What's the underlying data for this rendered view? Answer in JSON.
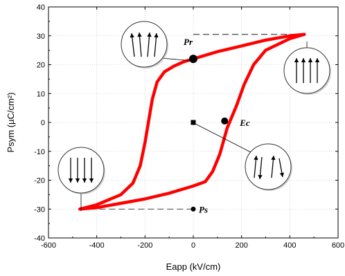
{
  "chart_data": {
    "type": "line",
    "title": "",
    "xlabel": "Eapp (kV/cm)",
    "ylabel": "Psym (µC/cm²)",
    "xlim": [
      -600,
      600
    ],
    "ylim": [
      -40,
      40
    ],
    "xticks": [
      "-600",
      "-400",
      "-200",
      "0",
      "200",
      "400",
      "600"
    ],
    "yticks": [
      "40",
      "30",
      "20",
      "10",
      "0",
      "-10",
      "-20",
      "-30",
      "-40"
    ],
    "grid": true,
    "series": [
      {
        "color": "#ff0000",
        "x": [
          -470,
          -400,
          -300,
          -250,
          -220,
          -200,
          -190,
          -180,
          -170,
          -150,
          -120,
          -80,
          -40,
          0,
          100,
          200,
          300,
          400,
          460
        ],
        "y": [
          -30,
          -28.5,
          -25,
          -21,
          -15,
          -7,
          -2,
          3,
          8,
          14,
          17.5,
          19.5,
          21,
          22,
          24.5,
          26.5,
          28.5,
          30,
          30.5
        ]
      },
      {
        "color": "#ff0000",
        "x": [
          460,
          400,
          300,
          250,
          210,
          180,
          160,
          150,
          140,
          130,
          110,
          80,
          50,
          0,
          -100,
          -200,
          -300,
          -400,
          -470
        ],
        "y": [
          30.5,
          29,
          25,
          20,
          13,
          6,
          2,
          0,
          -2,
          -5,
          -11,
          -17,
          -20.5,
          -22,
          -24.5,
          -26.5,
          -28,
          -29.5,
          -30
        ]
      }
    ],
    "annotations": [
      {
        "label": "Pr",
        "x": 0,
        "y": 22
      },
      {
        "label": "Ec",
        "x": 130,
        "y": 0
      },
      {
        "label": "Ps",
        "x": 0,
        "y": -30
      }
    ],
    "markers": [
      {
        "x": 0,
        "y": 22,
        "shape": "circle-large"
      },
      {
        "x": 130,
        "y": 0.5,
        "shape": "circle"
      },
      {
        "x": 0,
        "y": 0,
        "shape": "square"
      },
      {
        "x": 0,
        "y": -30,
        "shape": "circle-small"
      }
    ],
    "dashed_lines": [
      {
        "x1": 0,
        "y1": 30.5,
        "x2": 460,
        "y2": 30.5
      },
      {
        "x1": -470,
        "y1": -30,
        "x2": 0,
        "y2": -30
      }
    ]
  },
  "insets": [
    {
      "name": "inset-pr",
      "arrows": "tilted-up"
    },
    {
      "name": "inset-ps-positive",
      "arrows": "up"
    },
    {
      "name": "inset-ps-negative",
      "arrows": "down"
    },
    {
      "name": "inset-ec",
      "arrows": "random"
    }
  ]
}
